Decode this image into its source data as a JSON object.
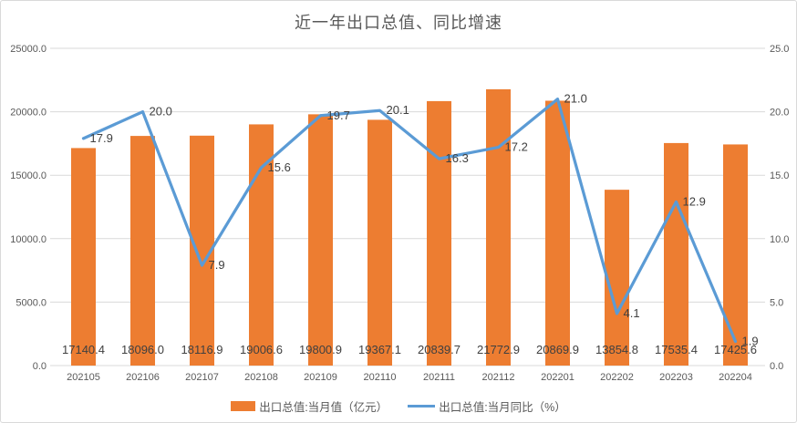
{
  "chart_data": {
    "type": "combo",
    "title": "近一年出口总值、同比增速",
    "categories": [
      "202105",
      "202106",
      "202107",
      "202108",
      "202109",
      "202110",
      "202111",
      "202112",
      "202201",
      "202202",
      "202203",
      "202204"
    ],
    "series": [
      {
        "name": "出口总值:当月值（亿元）",
        "type": "bar",
        "axis": "left",
        "color": "#ED7D31",
        "values": [
          17140.4,
          18096.0,
          18116.9,
          19006.6,
          19800.9,
          19367.1,
          20839.7,
          21772.9,
          20869.9,
          13854.8,
          17535.4,
          17425.6
        ],
        "labels": [
          "17140.4",
          "18096.0",
          "18116.9",
          "19006.6",
          "19800.9",
          "19367.1",
          "20839.7",
          "21772.9",
          "20869.9",
          "13854.8",
          "17535.4",
          "17425.6"
        ]
      },
      {
        "name": "出口总值:当月同比（%）",
        "type": "line",
        "axis": "right",
        "color": "#5B9BD5",
        "values": [
          17.9,
          20.0,
          7.9,
          15.6,
          19.7,
          20.1,
          16.3,
          17.2,
          21.0,
          4.1,
          12.9,
          1.9
        ],
        "labels": [
          "17.9",
          "20.0",
          "7.9",
          "15.6",
          "19.7",
          "20.1",
          "16.3",
          "17.2",
          "21.0",
          "4.1",
          "12.9",
          "1.9"
        ]
      }
    ],
    "left_axis": {
      "min": 0,
      "max": 25000,
      "ticks": [
        "0.0",
        "5000.0",
        "10000.0",
        "15000.0",
        "20000.0",
        "25000.0"
      ]
    },
    "right_axis": {
      "min": 0,
      "max": 25,
      "ticks": [
        "0.0",
        "5.0",
        "10.0",
        "15.0",
        "20.0",
        "25.0"
      ]
    },
    "grid": true,
    "legend_position": "bottom",
    "colors": {
      "bar": "#ED7D31",
      "line": "#5B9BD5",
      "grid": "#D9D9D9",
      "axis_text": "#595959",
      "data_label": "#404040",
      "border": "#D9D9D9",
      "background": "#FFFFFF"
    }
  }
}
